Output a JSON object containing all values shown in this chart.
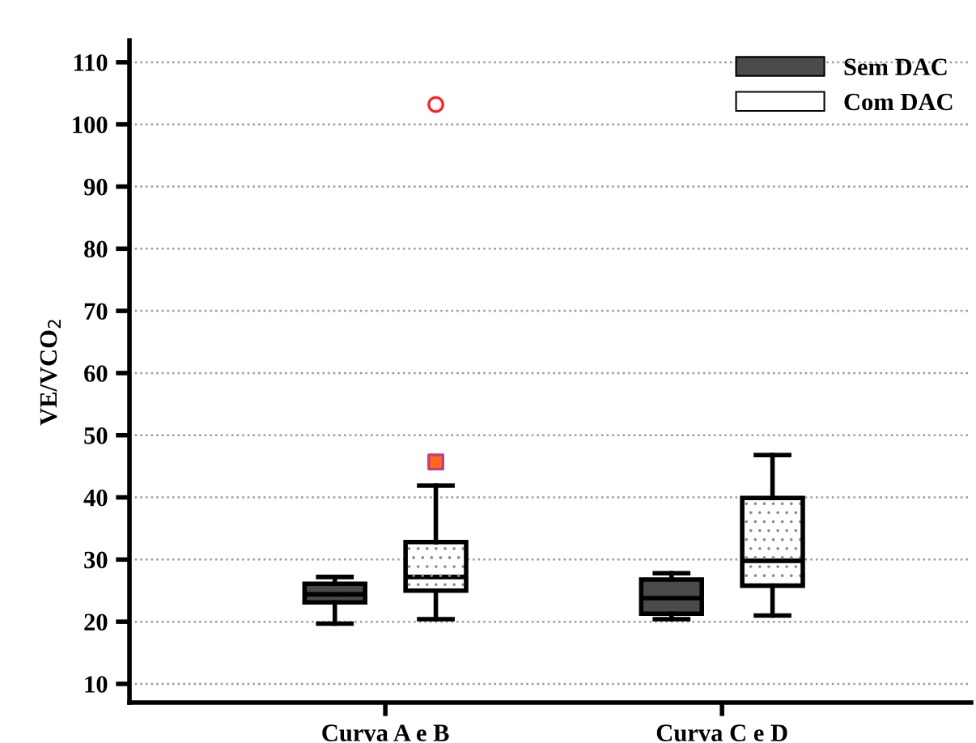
{
  "chart_data": {
    "type": "box",
    "ylabel": "VE/VCO$_{2}$",
    "categories": [
      "Curva A e B",
      "Curva C e D"
    ],
    "series": [
      {
        "name": "Sem DAC",
        "color": "#4a4a4a",
        "boxes": [
          {
            "low": 19.7,
            "q1": 23.1,
            "median": 24.4,
            "q3": 26.1,
            "high": 27.2
          },
          {
            "low": 20.4,
            "q1": 21.3,
            "median": 23.8,
            "q3": 26.8,
            "high": 27.8
          }
        ]
      },
      {
        "name": "Com DAC",
        "color": "#ffffff",
        "boxes": [
          {
            "low": 20.4,
            "q1": 25.0,
            "median": 27.2,
            "q3": 32.8,
            "high": 41.9,
            "outliers": [
              45.7,
              103.2
            ]
          },
          {
            "low": 21.0,
            "q1": 25.8,
            "median": 29.8,
            "q3": 39.9,
            "high": 46.8
          }
        ]
      }
    ],
    "ylim": [
      7,
      113.5
    ],
    "yticks": [
      10,
      20,
      30,
      40,
      50,
      60,
      70,
      80,
      90,
      100,
      110
    ],
    "grid": "y",
    "legend": "top right"
  }
}
